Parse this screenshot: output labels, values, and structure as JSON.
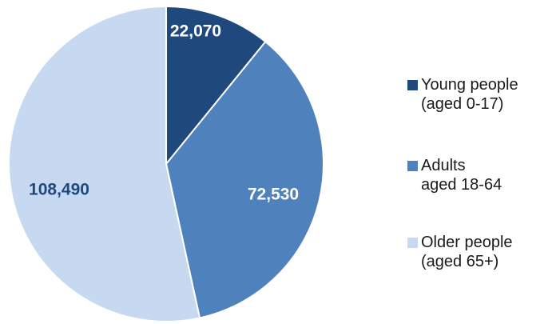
{
  "chart_data": {
    "type": "pie",
    "title": "",
    "start_angle_deg": 0,
    "direction": "clockwise",
    "legend_position": "right",
    "slices": [
      {
        "value": 22070,
        "label": "22,070",
        "legend": [
          "Young people",
          "(aged 0-17)"
        ],
        "color": "#1f497d",
        "label_color": "#ffffff"
      },
      {
        "value": 72530,
        "label": "72,530",
        "legend": [
          "Adults",
          "aged 18-64"
        ],
        "color": "#4f81bd",
        "label_color": "#ffffff"
      },
      {
        "value": 108490,
        "label": "108,490",
        "legend": [
          "Older people",
          "(aged 65+)"
        ],
        "color": "#c6d9f1",
        "label_color": "#1f497d"
      }
    ]
  }
}
